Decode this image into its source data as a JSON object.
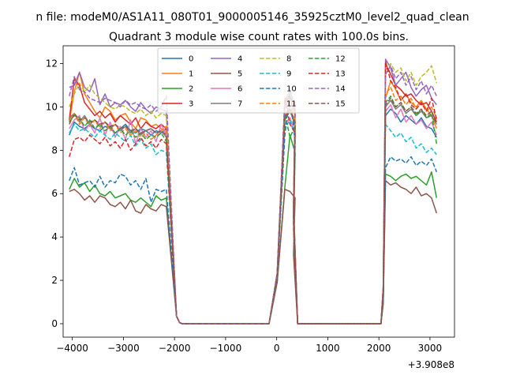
{
  "chart_data": {
    "type": "line",
    "suptitle": "n file: modeM0/AS1A11_080T01_9000005146_35925cztM0_level2_quad_clean",
    "title": "Quadrant 3 module wise count rates with 100.0s bins.",
    "xlabel": "",
    "ylabel": "",
    "offset_text": "+3.908e8",
    "xlim": [
      -4180,
      3480
    ],
    "ylim": [
      -0.62,
      12.82
    ],
    "xticks": [
      -4000,
      -3000,
      -2000,
      -1000,
      0,
      1000,
      2000,
      3000
    ],
    "xtick_labels": [
      "−4000",
      "−3000",
      "−2000",
      "−1000",
      "0",
      "1000",
      "2000",
      "3000"
    ],
    "yticks": [
      0,
      2,
      4,
      6,
      8,
      10,
      12
    ],
    "ytick_labels": [
      "0",
      "2",
      "4",
      "6",
      "8",
      "10",
      "12"
    ],
    "legend_position": "upper-center",
    "legend_columns": 4,
    "series": [
      {
        "name": "0",
        "color": "#1f77b4",
        "dash": "solid",
        "seg1": [
          8.7,
          9.3,
          9.1,
          9.0,
          9.2,
          9.0,
          8.9,
          9.1,
          9.0,
          8.8,
          9.0,
          9.2,
          8.9,
          8.8,
          9.0,
          8.9,
          8.7,
          8.9,
          8.8,
          9.0
        ],
        "seg2": [
          9.5,
          9.9,
          9.1
        ],
        "seg3": [
          9.6,
          9.9,
          9.7,
          9.3,
          9.6,
          9.4,
          9.2,
          9.5,
          9.1,
          9.0,
          8.6
        ]
      },
      {
        "name": "1",
        "color": "#ff7f0e",
        "dash": "solid",
        "seg1": [
          9.3,
          10.7,
          11.6,
          10.6,
          10.2,
          9.8,
          9.5,
          10.0,
          9.8,
          9.4,
          9.6,
          9.7,
          9.3,
          9.0,
          9.5,
          9.4,
          9.1,
          9.2,
          9.0,
          8.8
        ],
        "seg2": [
          10.0,
          10.4,
          9.6
        ],
        "seg3": [
          10.4,
          11.2,
          10.8,
          10.3,
          10.6,
          10.2,
          10.0,
          10.3,
          9.9,
          9.6,
          9.0
        ]
      },
      {
        "name": "2",
        "color": "#2ca02c",
        "dash": "solid",
        "seg1": [
          6.2,
          6.7,
          6.3,
          6.5,
          6.1,
          6.4,
          6.0,
          5.9,
          6.1,
          5.8,
          5.9,
          6.0,
          5.7,
          5.6,
          5.8,
          5.6,
          5.4,
          5.9,
          5.7,
          5.8
        ],
        "seg2": [
          6.3,
          8.7,
          7.9
        ],
        "seg3": [
          6.9,
          6.8,
          6.6,
          6.8,
          6.9,
          6.7,
          6.8,
          6.6,
          6.4,
          7.0,
          5.8
        ]
      },
      {
        "name": "3",
        "color": "#d62728",
        "dash": "solid",
        "seg1": [
          9.4,
          11.3,
          11.0,
          10.2,
          9.9,
          9.6,
          9.8,
          9.5,
          9.7,
          9.3,
          9.6,
          9.4,
          9.2,
          9.5,
          9.0,
          9.3,
          9.1,
          9.0,
          9.2,
          9.0
        ],
        "seg2": [
          10.1,
          10.6,
          9.8
        ],
        "seg3": [
          12.0,
          11.5,
          11.0,
          10.8,
          10.5,
          10.6,
          10.3,
          10.1,
          10.2,
          9.8,
          9.3
        ]
      },
      {
        "name": "4",
        "color": "#9467bd",
        "dash": "solid",
        "seg1": [
          10.9,
          11.0,
          11.6,
          10.9,
          10.7,
          11.3,
          10.1,
          10.6,
          10.0,
          10.2,
          10.1,
          10.3,
          10.0,
          9.8,
          10.2,
          9.9,
          9.7,
          10.0,
          9.9,
          9.8
        ],
        "seg2": [
          10.2,
          10.8,
          9.9
        ],
        "seg3": [
          12.2,
          11.8,
          11.0,
          11.3,
          11.6,
          10.9,
          10.5,
          10.8,
          11.0,
          10.4,
          10.1
        ]
      },
      {
        "name": "5",
        "color": "#8c564b",
        "dash": "solid",
        "seg1": [
          6.1,
          6.2,
          6.0,
          5.7,
          5.9,
          5.6,
          5.9,
          5.8,
          5.5,
          5.4,
          5.6,
          5.3,
          5.7,
          5.2,
          5.1,
          5.5,
          5.3,
          5.2,
          5.5,
          5.4
        ],
        "seg2": [
          6.2,
          6.1,
          5.8
        ],
        "seg3": [
          6.6,
          6.4,
          6.5,
          6.3,
          6.2,
          6.0,
          6.3,
          5.9,
          6.0,
          5.8,
          5.1
        ]
      },
      {
        "name": "6",
        "color": "#e377c2",
        "dash": "solid",
        "seg1": [
          9.0,
          9.4,
          9.6,
          8.9,
          9.2,
          8.8,
          9.5,
          8.7,
          9.3,
          8.6,
          9.1,
          8.5,
          9.4,
          8.3,
          9.0,
          8.6,
          8.9,
          8.4,
          9.2,
          8.7
        ],
        "seg2": [
          9.2,
          9.5,
          8.8
        ],
        "seg3": [
          9.8,
          10.1,
          9.5,
          9.9,
          9.3,
          9.6,
          9.2,
          9.4,
          9.0,
          9.3,
          8.7
        ]
      },
      {
        "name": "7",
        "color": "#7f7f7f",
        "dash": "solid",
        "seg1": [
          9.5,
          9.7,
          9.3,
          9.6,
          9.2,
          9.4,
          9.1,
          9.3,
          9.0,
          9.2,
          8.9,
          9.1,
          8.8,
          9.0,
          8.7,
          8.9,
          9.0,
          8.8,
          8.9,
          8.6
        ],
        "seg2": [
          9.4,
          9.8,
          9.2
        ],
        "seg3": [
          10.0,
          10.3,
          9.9,
          10.1,
          9.7,
          9.9,
          9.6,
          9.8,
          9.5,
          9.6,
          9.2
        ]
      },
      {
        "name": "8",
        "color": "#bcbd22",
        "dash": "dash",
        "seg1": [
          10.0,
          10.6,
          11.1,
          10.7,
          11.0,
          10.6,
          10.4,
          10.2,
          10.0,
          9.9,
          10.1,
          10.0,
          9.8,
          9.7,
          9.9,
          9.6,
          9.8,
          9.5,
          9.7,
          9.6
        ],
        "seg2": [
          10.3,
          10.7,
          9.9
        ],
        "seg3": [
          11.7,
          12.0,
          11.6,
          11.8,
          11.2,
          11.6,
          11.0,
          11.4,
          11.6,
          11.9,
          11.1
        ]
      },
      {
        "name": "9",
        "color": "#17becf",
        "dash": "dash",
        "seg1": [
          8.8,
          9.2,
          8.9,
          9.0,
          8.8,
          8.6,
          8.9,
          8.7,
          8.5,
          8.8,
          8.6,
          8.4,
          8.7,
          8.2,
          8.5,
          8.1,
          8.3,
          7.8,
          8.0,
          7.9
        ],
        "seg2": [
          9.0,
          9.4,
          8.6
        ],
        "seg3": [
          9.2,
          8.9,
          8.6,
          8.8,
          8.4,
          8.6,
          8.1,
          8.3,
          7.9,
          8.1,
          7.8
        ]
      },
      {
        "name": "10",
        "color": "#1f77b4",
        "dash": "dash",
        "seg1": [
          6.6,
          7.2,
          6.4,
          6.5,
          6.6,
          6.3,
          6.8,
          6.3,
          6.6,
          6.5,
          6.9,
          6.8,
          6.4,
          6.6,
          6.2,
          6.7,
          5.6,
          6.2,
          6.1,
          6.2
        ],
        "seg2": [
          8.7,
          10.7,
          8.4
        ],
        "seg3": [
          7.2,
          7.7,
          7.5,
          7.6,
          7.4,
          7.7,
          7.3,
          7.5,
          7.3,
          7.6,
          7.0
        ]
      },
      {
        "name": "11",
        "color": "#ff7f0e",
        "dash": "dash",
        "seg1": [
          9.4,
          9.7,
          9.2,
          9.5,
          9.1,
          9.4,
          9.0,
          9.3,
          8.9,
          9.2,
          8.8,
          9.0,
          8.7,
          8.9,
          8.6,
          8.8,
          8.5,
          8.7,
          8.9,
          9.1
        ],
        "seg2": [
          9.6,
          10.0,
          9.3
        ],
        "seg3": [
          10.6,
          10.9,
          10.3,
          10.5,
          10.1,
          10.4,
          9.9,
          10.2,
          9.8,
          10.0,
          9.5
        ]
      },
      {
        "name": "12",
        "color": "#2ca02c",
        "dash": "dash",
        "seg1": [
          9.3,
          9.6,
          9.5,
          9.1,
          9.4,
          9.0,
          9.2,
          8.9,
          9.1,
          8.8,
          9.0,
          8.7,
          8.9,
          8.6,
          8.8,
          8.5,
          8.7,
          8.6,
          8.8,
          8.4
        ],
        "seg2": [
          9.7,
          8.6,
          9.1
        ],
        "seg3": [
          10.2,
          10.5,
          10.0,
          10.2,
          9.8,
          10.0,
          9.6,
          9.9,
          9.5,
          9.7,
          8.3
        ]
      },
      {
        "name": "13",
        "color": "#d62728",
        "dash": "dash",
        "seg1": [
          7.7,
          8.5,
          8.6,
          8.4,
          8.7,
          8.5,
          8.3,
          8.6,
          8.2,
          8.4,
          8.1,
          8.5,
          8.0,
          8.3,
          8.6,
          8.2,
          8.4,
          8.1,
          8.5,
          8.3
        ],
        "seg2": [
          10.4,
          9.2,
          8.8
        ],
        "seg3": [
          12.1,
          11.2,
          10.9,
          10.3,
          10.6,
          10.1,
          9.9,
          10.2,
          9.8,
          10.4,
          9.4
        ]
      },
      {
        "name": "14",
        "color": "#9467bd",
        "dash": "dash",
        "seg1": [
          10.5,
          11.4,
          10.8,
          10.7,
          10.4,
          10.3,
          10.2,
          10.4,
          10.3,
          10.2,
          10.0,
          10.3,
          10.1,
          10.2,
          10.0,
          9.9,
          10.1,
          9.8,
          10.0,
          10.5
        ],
        "seg2": [
          10.3,
          10.5,
          10.2
        ],
        "seg3": [
          11.5,
          11.9,
          11.3,
          11.6,
          11.0,
          11.4,
          10.8,
          11.2,
          10.6,
          11.0,
          10.5
        ]
      },
      {
        "name": "15",
        "color": "#8c564b",
        "dash": "dash",
        "seg1": [
          9.2,
          9.7,
          9.4,
          9.5,
          9.3,
          9.4,
          9.2,
          9.3,
          9.1,
          9.2,
          9.0,
          9.1,
          8.9,
          9.0,
          8.8,
          8.9,
          9.0,
          8.8,
          8.9,
          8.7
        ],
        "seg2": [
          9.5,
          9.9,
          9.3
        ],
        "seg3": [
          10.1,
          10.4,
          10.0,
          10.2,
          9.8,
          10.0,
          9.7,
          9.9,
          9.6,
          9.8,
          9.2
        ]
      }
    ]
  }
}
